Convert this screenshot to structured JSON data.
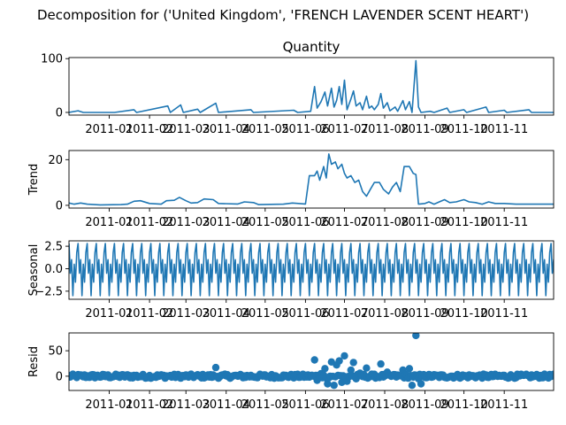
{
  "figure": {
    "suptitle": "Decomposition for ('United Kingdom', 'FRENCH LAVENDER SCENT HEART')"
  },
  "colors": {
    "series": "#1f77b4",
    "axis": "#000000",
    "background": "#ffffff"
  },
  "chart_data": [
    {
      "type": "line",
      "title": "Quantity",
      "xlabel": "",
      "ylabel": "",
      "x_range": [
        "2010-12-01",
        "2011-12-09"
      ],
      "ylim": [
        -5,
        102
      ],
      "yticks": [
        0,
        100
      ],
      "x_tick_labels": [
        "2011-01",
        "2011-02",
        "2011-03",
        "2011-04",
        "2011-05",
        "2011-06",
        "2011-07",
        "2011-08",
        "2011-09",
        "2011-10",
        "2011-11"
      ],
      "series": [
        {
          "points": [
            [
              "2010-12-01",
              0
            ],
            [
              "2010-12-08",
              3
            ],
            [
              "2010-12-12",
              0
            ],
            [
              "2011-01-05",
              0
            ],
            [
              "2011-01-20",
              5
            ],
            [
              "2011-01-22",
              0
            ],
            [
              "2011-02-15",
              12
            ],
            [
              "2011-02-17",
              0
            ],
            [
              "2011-02-25",
              14
            ],
            [
              "2011-02-27",
              0
            ],
            [
              "2011-03-10",
              6
            ],
            [
              "2011-03-12",
              0
            ],
            [
              "2011-03-24",
              17
            ],
            [
              "2011-03-26",
              0
            ],
            [
              "2011-04-20",
              5
            ],
            [
              "2011-04-22",
              0
            ],
            [
              "2011-05-23",
              4
            ],
            [
              "2011-05-26",
              0
            ],
            [
              "2011-06-05",
              2
            ],
            [
              "2011-06-08",
              48
            ],
            [
              "2011-06-10",
              8
            ],
            [
              "2011-06-13",
              20
            ],
            [
              "2011-06-16",
              38
            ],
            [
              "2011-06-18",
              12
            ],
            [
              "2011-06-21",
              45
            ],
            [
              "2011-06-23",
              10
            ],
            [
              "2011-06-25",
              22
            ],
            [
              "2011-06-27",
              48
            ],
            [
              "2011-06-29",
              15
            ],
            [
              "2011-07-01",
              60
            ],
            [
              "2011-07-03",
              5
            ],
            [
              "2011-07-06",
              25
            ],
            [
              "2011-07-08",
              40
            ],
            [
              "2011-07-10",
              12
            ],
            [
              "2011-07-13",
              18
            ],
            [
              "2011-07-15",
              5
            ],
            [
              "2011-07-18",
              30
            ],
            [
              "2011-07-20",
              8
            ],
            [
              "2011-07-22",
              12
            ],
            [
              "2011-07-24",
              5
            ],
            [
              "2011-07-27",
              15
            ],
            [
              "2011-07-29",
              35
            ],
            [
              "2011-07-31",
              8
            ],
            [
              "2011-08-03",
              18
            ],
            [
              "2011-08-05",
              3
            ],
            [
              "2011-08-09",
              10
            ],
            [
              "2011-08-11",
              2
            ],
            [
              "2011-08-15",
              22
            ],
            [
              "2011-08-17",
              5
            ],
            [
              "2011-08-20",
              20
            ],
            [
              "2011-08-22",
              0
            ],
            [
              "2011-08-25",
              96
            ],
            [
              "2011-08-27",
              10
            ],
            [
              "2011-08-29",
              0
            ],
            [
              "2011-09-05",
              2
            ],
            [
              "2011-09-08",
              0
            ],
            [
              "2011-09-18",
              8
            ],
            [
              "2011-09-20",
              0
            ],
            [
              "2011-10-01",
              5
            ],
            [
              "2011-10-03",
              0
            ],
            [
              "2011-10-18",
              10
            ],
            [
              "2011-10-20",
              0
            ],
            [
              "2011-11-01",
              4
            ],
            [
              "2011-11-03",
              0
            ],
            [
              "2011-11-20",
              5
            ],
            [
              "2011-11-22",
              0
            ],
            [
              "2011-12-09",
              0
            ]
          ]
        }
      ]
    },
    {
      "type": "line",
      "title": "",
      "xlabel": "",
      "ylabel": "Trend",
      "x_range": [
        "2010-12-01",
        "2011-12-09"
      ],
      "ylim": [
        -1.2,
        24
      ],
      "yticks": [
        0,
        20
      ],
      "x_tick_labels": [
        "2011-01",
        "2011-02",
        "2011-03",
        "2011-04",
        "2011-05",
        "2011-06",
        "2011-07",
        "2011-08",
        "2011-09",
        "2011-10",
        "2011-11"
      ],
      "series": [
        {
          "points": [
            [
              "2010-12-01",
              1
            ],
            [
              "2010-12-05",
              0.5
            ],
            [
              "2010-12-10",
              1
            ],
            [
              "2010-12-15",
              0.5
            ],
            [
              "2010-12-25",
              0.2
            ],
            [
              "2011-01-10",
              0.3
            ],
            [
              "2011-01-15",
              0.5
            ],
            [
              "2011-01-20",
              1.8
            ],
            [
              "2011-01-25",
              2
            ],
            [
              "2011-02-01",
              0.8
            ],
            [
              "2011-02-10",
              0.5
            ],
            [
              "2011-02-14",
              2
            ],
            [
              "2011-02-20",
              2.2
            ],
            [
              "2011-02-24",
              3.5
            ],
            [
              "2011-03-01",
              2
            ],
            [
              "2011-03-05",
              1
            ],
            [
              "2011-03-10",
              1.2
            ],
            [
              "2011-03-15",
              2.8
            ],
            [
              "2011-03-22",
              2.5
            ],
            [
              "2011-03-26",
              0.8
            ],
            [
              "2011-04-10",
              0.6
            ],
            [
              "2011-04-15",
              1.5
            ],
            [
              "2011-04-22",
              1.2
            ],
            [
              "2011-04-26",
              0.3
            ],
            [
              "2011-05-15",
              0.5
            ],
            [
              "2011-05-22",
              1
            ],
            [
              "2011-06-01",
              0.6
            ],
            [
              "2011-06-04",
              13
            ],
            [
              "2011-06-08",
              13
            ],
            [
              "2011-06-10",
              15
            ],
            [
              "2011-06-12",
              11
            ],
            [
              "2011-06-15",
              17
            ],
            [
              "2011-06-17",
              12
            ],
            [
              "2011-06-19",
              22.5
            ],
            [
              "2011-06-21",
              18
            ],
            [
              "2011-06-24",
              19
            ],
            [
              "2011-06-26",
              16
            ],
            [
              "2011-06-29",
              18
            ],
            [
              "2011-07-01",
              14
            ],
            [
              "2011-07-03",
              12
            ],
            [
              "2011-07-06",
              13
            ],
            [
              "2011-07-09",
              10
            ],
            [
              "2011-07-12",
              11
            ],
            [
              "2011-07-15",
              6
            ],
            [
              "2011-07-18",
              4
            ],
            [
              "2011-07-21",
              7
            ],
            [
              "2011-07-24",
              10
            ],
            [
              "2011-07-28",
              10
            ],
            [
              "2011-07-31",
              7
            ],
            [
              "2011-08-04",
              5
            ],
            [
              "2011-08-07",
              8
            ],
            [
              "2011-08-10",
              10
            ],
            [
              "2011-08-13",
              6
            ],
            [
              "2011-08-16",
              17
            ],
            [
              "2011-08-20",
              17
            ],
            [
              "2011-08-23",
              14
            ],
            [
              "2011-08-25",
              13.5
            ],
            [
              "2011-08-27",
              0.5
            ],
            [
              "2011-09-01",
              0.8
            ],
            [
              "2011-09-04",
              1.5
            ],
            [
              "2011-09-08",
              0.5
            ],
            [
              "2011-09-12",
              1.5
            ],
            [
              "2011-09-16",
              2.5
            ],
            [
              "2011-09-20",
              1.2
            ],
            [
              "2011-09-25",
              1.5
            ],
            [
              "2011-10-01",
              2.5
            ],
            [
              "2011-10-05",
              1.5
            ],
            [
              "2011-10-10",
              1.2
            ],
            [
              "2011-10-15",
              0.5
            ],
            [
              "2011-10-20",
              1.5
            ],
            [
              "2011-10-25",
              0.8
            ],
            [
              "2011-11-01",
              0.8
            ],
            [
              "2011-11-10",
              0.5
            ],
            [
              "2011-12-09",
              0.5
            ]
          ]
        }
      ]
    },
    {
      "type": "line",
      "title": "",
      "xlabel": "",
      "ylabel": "Seasonal",
      "x_range": [
        "2010-12-01",
        "2011-12-09"
      ],
      "ylim": [
        -3.4,
        3.1
      ],
      "yticks": [
        -2.5,
        0.0,
        2.5
      ],
      "ytick_labels": [
        "−2.5",
        "0.0",
        "2.5"
      ],
      "x_tick_labels": [
        "2011-01",
        "2011-02",
        "2011-03",
        "2011-04",
        "2011-05",
        "2011-06",
        "2011-07",
        "2011-08",
        "2011-09",
        "2011-10",
        "2011-11"
      ],
      "period_days": 7,
      "weekly_pattern": [
        2.8,
        -0.5,
        1.0,
        -3.0,
        0.5,
        -1.5,
        1.8
      ],
      "series": []
    },
    {
      "type": "scatter",
      "title": "",
      "xlabel": "",
      "ylabel": "Resid",
      "x_range": [
        "2010-12-01",
        "2011-12-09"
      ],
      "ylim": [
        -28,
        85
      ],
      "yticks": [
        0,
        50
      ],
      "x_tick_labels": [
        "2011-01",
        "2011-02",
        "2011-03",
        "2011-04",
        "2011-05",
        "2011-06",
        "2011-07",
        "2011-08",
        "2011-09",
        "2011-10",
        "2011-11"
      ],
      "zero_line": true,
      "notable_points": [
        [
          "2011-03-24",
          17
        ],
        [
          "2011-06-08",
          32
        ],
        [
          "2011-06-10",
          -8
        ],
        [
          "2011-06-13",
          5
        ],
        [
          "2011-06-16",
          15
        ],
        [
          "2011-06-18",
          -15
        ],
        [
          "2011-06-21",
          28
        ],
        [
          "2011-06-23",
          -18
        ],
        [
          "2011-06-25",
          22
        ],
        [
          "2011-06-27",
          30
        ],
        [
          "2011-06-29",
          -12
        ],
        [
          "2011-07-01",
          40
        ],
        [
          "2011-07-03",
          -10
        ],
        [
          "2011-07-06",
          12
        ],
        [
          "2011-07-08",
          27
        ],
        [
          "2011-07-10",
          -5
        ],
        [
          "2011-07-13",
          6
        ],
        [
          "2011-07-18",
          16
        ],
        [
          "2011-07-22",
          4
        ],
        [
          "2011-07-29",
          24
        ],
        [
          "2011-08-03",
          8
        ],
        [
          "2011-08-09",
          3
        ],
        [
          "2011-08-15",
          12
        ],
        [
          "2011-08-20",
          15
        ],
        [
          "2011-08-22",
          -18
        ],
        [
          "2011-08-25",
          80
        ],
        [
          "2011-08-27",
          -5
        ],
        [
          "2011-08-29",
          -15
        ]
      ]
    }
  ]
}
